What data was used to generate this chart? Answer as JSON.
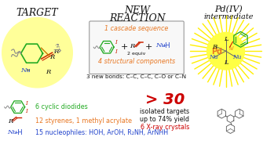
{
  "title_left": "TARGET",
  "title_mid": "NEW\nREACTION",
  "title_right": "Pd(IV)\nintermediate",
  "box_text1": "1 cascade sequence",
  "box_text2": "4 structural components",
  "bonds_text": "3 new bonds: C–C, C–C, C–O or C–N",
  "line1_green": "6 cyclic diodides",
  "line2_orange": "12 styrenes, 1 methyl acrylate",
  "line3_blue": "15 nucleophiles: HOH, ArOH, R₂NH, ArNHH",
  "count_red": "> 30",
  "count_black1": "isolated targets",
  "count_black2": "up to 74% yield",
  "count_red2": "6 X-ray crystals",
  "bg_color": "#ffffff",
  "yellow_circle_color": "#ffff99",
  "yellow_sun_color": "#ffff00",
  "orange_color": "#e87722",
  "green_color": "#22aa22",
  "blue_color": "#2244cc",
  "red_color": "#cc0000",
  "dark_red": "#cc2200",
  "black_color": "#111111",
  "gray_color": "#888888",
  "box_border": "#999999"
}
